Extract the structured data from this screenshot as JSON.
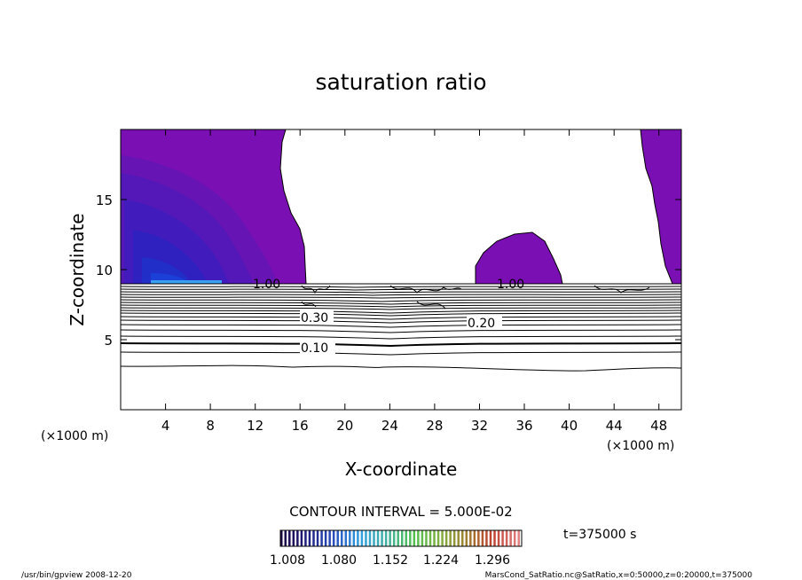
{
  "chart_data": {
    "type": "heatmap",
    "title": "saturation ratio",
    "xlabel": "X-coordinate",
    "ylabel": "Z-coordinate",
    "x_unit": "(×1000 m)",
    "y_unit": "(×1000 m)",
    "xlim": [
      0,
      50
    ],
    "ylim": [
      0,
      20
    ],
    "x_ticks": [
      4,
      8,
      12,
      16,
      20,
      24,
      28,
      32,
      36,
      40,
      44,
      48
    ],
    "y_ticks": [
      5,
      10,
      15
    ],
    "contour_interval_text": "CONTOUR INTERVAL = 5.000E-02",
    "contour_labels": [
      {
        "text": "1.00",
        "x": 13.3,
        "z": 9.0
      },
      {
        "text": "1.00",
        "x": 34.2,
        "z": 9.0
      },
      {
        "text": "0.30",
        "x": 17.0,
        "z": 6.4
      },
      {
        "text": "0.20",
        "x": 32.5,
        "z": 6.1
      },
      {
        "text": "0.10",
        "x": 17.0,
        "z": 4.5
      }
    ],
    "colorbar": {
      "ticks": [
        "1.008",
        "1.080",
        "1.152",
        "1.224",
        "1.296"
      ],
      "colors": [
        "#1a0040",
        "#202080",
        "#2a50c0",
        "#30a0e0",
        "#40b0a0",
        "#50c050",
        "#80b040",
        "#a08030",
        "#c04030",
        "#e08080"
      ]
    },
    "time_label": "t=375000 s",
    "footer_left": "/usr/bin/gpview   2008-12-20",
    "footer_right": "MarsCond_SatRatio.nc@SatRatio,x=0:50000,z=0:20000,t=375000"
  }
}
